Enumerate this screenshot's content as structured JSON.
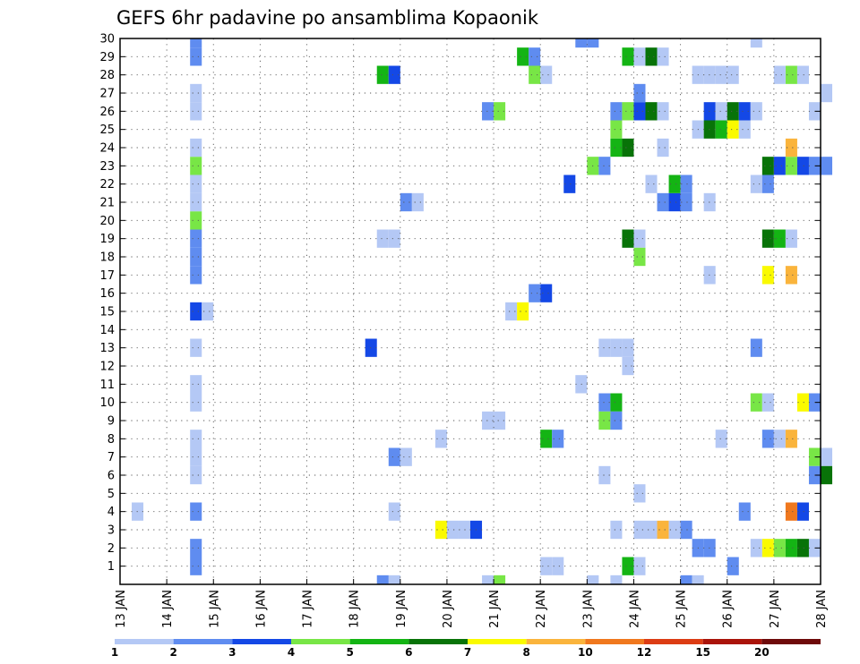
{
  "chart_data": {
    "type": "heatmap",
    "title": "GEFS 6hr padavine po ansamblima Kopaonik",
    "xlabel": "",
    "ylabel": "",
    "x_ticks": [
      "13 JAN",
      "14 JAN",
      "15 JAN",
      "16 JAN",
      "17 JAN",
      "18 JAN",
      "19 JAN",
      "20 JAN",
      "21 JAN",
      "22 JAN",
      "23 JAN",
      "24 JAN",
      "25 JAN",
      "26 JAN",
      "27 JAN",
      "28 JAN"
    ],
    "x_range_days": [
      13,
      28
    ],
    "step_hours": 6,
    "y_ticks": [
      1,
      2,
      3,
      4,
      5,
      6,
      7,
      8,
      9,
      10,
      11,
      12,
      13,
      14,
      15,
      16,
      17,
      18,
      19,
      20,
      21,
      22,
      23,
      24,
      25,
      26,
      27,
      28,
      29,
      30
    ],
    "y_range": [
      0,
      30
    ],
    "grid": true,
    "colorbar": {
      "levels": [
        "1",
        "2",
        "3",
        "4",
        "5",
        "6",
        "7",
        "8",
        "10",
        "12",
        "15",
        "20"
      ],
      "colors": [
        "#b4c8f5",
        "#5f8cf0",
        "#1448e6",
        "#78e646",
        "#14b414",
        "#087308",
        "#fafa00",
        "#fab43c",
        "#f0781e",
        "#dc3c14",
        "#aa140a",
        "#6e0a0a"
      ]
    },
    "cells": [
      [
        14.5,
        1,
        2
      ],
      [
        14.5,
        2,
        2
      ],
      [
        14.5,
        4,
        2
      ],
      [
        14.5,
        6,
        1
      ],
      [
        14.5,
        7,
        1
      ],
      [
        14.5,
        8,
        1
      ],
      [
        14.5,
        10,
        1
      ],
      [
        14.5,
        11,
        1
      ],
      [
        14.5,
        13,
        1
      ],
      [
        14.5,
        15,
        3
      ],
      [
        14.75,
        15,
        1
      ],
      [
        14.5,
        17,
        2
      ],
      [
        14.5,
        18,
        2
      ],
      [
        14.5,
        19,
        2
      ],
      [
        14.5,
        20,
        4
      ],
      [
        14.5,
        21,
        1
      ],
      [
        14.5,
        22,
        1
      ],
      [
        14.5,
        23,
        4
      ],
      [
        14.5,
        24,
        1
      ],
      [
        14.5,
        26,
        1
      ],
      [
        14.5,
        27,
        1
      ],
      [
        14.5,
        29,
        2
      ],
      [
        14.5,
        30,
        2
      ],
      [
        13.25,
        4,
        1
      ],
      [
        18.25,
        13,
        3
      ],
      [
        18.5,
        28,
        5
      ],
      [
        18.75,
        28,
        3
      ],
      [
        18.5,
        19,
        1
      ],
      [
        18.75,
        19,
        1
      ],
      [
        18.75,
        4,
        1
      ],
      [
        18.75,
        7,
        2
      ],
      [
        19,
        7,
        1
      ],
      [
        19,
        21,
        2
      ],
      [
        19.25,
        21,
        1
      ],
      [
        19.75,
        8,
        1
      ],
      [
        19.75,
        3,
        7
      ],
      [
        20,
        3,
        1
      ],
      [
        20.25,
        3,
        1
      ],
      [
        20.5,
        3,
        3
      ],
      [
        20.75,
        9,
        1
      ],
      [
        21,
        9,
        1
      ],
      [
        20.75,
        26,
        2
      ],
      [
        21,
        26,
        4
      ],
      [
        21.25,
        15,
        1
      ],
      [
        21.5,
        15,
        7
      ],
      [
        21.5,
        29,
        5
      ],
      [
        21.75,
        29,
        2
      ],
      [
        21.75,
        28,
        4
      ],
      [
        22,
        28,
        1
      ],
      [
        21.75,
        16,
        2
      ],
      [
        22,
        16,
        3
      ],
      [
        22,
        8,
        5
      ],
      [
        22.25,
        8,
        2
      ],
      [
        22,
        1,
        1
      ],
      [
        22.25,
        1,
        1
      ],
      [
        22.5,
        22,
        3
      ],
      [
        22.75,
        11,
        1
      ],
      [
        23,
        23,
        4
      ],
      [
        23.25,
        23,
        2
      ],
      [
        22.75,
        30,
        2
      ],
      [
        23,
        30,
        2
      ],
      [
        23.25,
        13,
        1
      ],
      [
        23.5,
        13,
        1
      ],
      [
        23.75,
        13,
        1
      ],
      [
        23.75,
        12,
        1
      ],
      [
        23.25,
        10,
        2
      ],
      [
        23.5,
        10,
        5
      ],
      [
        23.25,
        9,
        4
      ],
      [
        23.5,
        9,
        2
      ],
      [
        23.25,
        6,
        1
      ],
      [
        23.5,
        3,
        1
      ],
      [
        23.5,
        26,
        2
      ],
      [
        23.75,
        26,
        4
      ],
      [
        24,
        26,
        3
      ],
      [
        24.25,
        26,
        6
      ],
      [
        24.5,
        26,
        1
      ],
      [
        23.5,
        25,
        4
      ],
      [
        23.5,
        24,
        5
      ],
      [
        23.75,
        24,
        6
      ],
      [
        23.75,
        29,
        5
      ],
      [
        24,
        29,
        1
      ],
      [
        24.25,
        29,
        6
      ],
      [
        24.5,
        29,
        1
      ],
      [
        23.75,
        1,
        5
      ],
      [
        24,
        1,
        1
      ],
      [
        23.75,
        19,
        6
      ],
      [
        24,
        19,
        1
      ],
      [
        24,
        18,
        4
      ],
      [
        24,
        27,
        2
      ],
      [
        24,
        5,
        1
      ],
      [
        24,
        3,
        1
      ],
      [
        24.25,
        3,
        1
      ],
      [
        24.5,
        3,
        8
      ],
      [
        24.75,
        3,
        1
      ],
      [
        25,
        3,
        2
      ],
      [
        24.25,
        22,
        1
      ],
      [
        24.5,
        24,
        1
      ],
      [
        24.5,
        21,
        2
      ],
      [
        24.75,
        21,
        3
      ],
      [
        25,
        21,
        2
      ],
      [
        24.75,
        22,
        5
      ],
      [
        25,
        22,
        2
      ],
      [
        25.25,
        28,
        1
      ],
      [
        25.5,
        28,
        1
      ],
      [
        25.75,
        28,
        1
      ],
      [
        26,
        28,
        1
      ],
      [
        25.5,
        21,
        1
      ],
      [
        25.5,
        17,
        1
      ],
      [
        25.25,
        25,
        1
      ],
      [
        25.5,
        25,
        6
      ],
      [
        25.75,
        25,
        5
      ],
      [
        26,
        25,
        7
      ],
      [
        26.25,
        25,
        1
      ],
      [
        25.5,
        26,
        3
      ],
      [
        25.75,
        26,
        1
      ],
      [
        26,
        26,
        6
      ],
      [
        26.25,
        26,
        3
      ],
      [
        26.5,
        26,
        1
      ],
      [
        25.25,
        2,
        2
      ],
      [
        25.5,
        2,
        2
      ],
      [
        25.75,
        8,
        1
      ],
      [
        26,
        1,
        2
      ],
      [
        26.25,
        4,
        2
      ],
      [
        26.5,
        13,
        2
      ],
      [
        26.5,
        10,
        4
      ],
      [
        26.75,
        10,
        1
      ],
      [
        26.5,
        22,
        1
      ],
      [
        26.75,
        22,
        2
      ],
      [
        26.5,
        2,
        1
      ],
      [
        26.75,
        2,
        7
      ],
      [
        27,
        2,
        4
      ],
      [
        27.25,
        2,
        5
      ],
      [
        27.5,
        2,
        6
      ],
      [
        27.75,
        2,
        1
      ],
      [
        26.75,
        8,
        2
      ],
      [
        27,
        8,
        1
      ],
      [
        27.25,
        8,
        8
      ],
      [
        26.75,
        17,
        7
      ],
      [
        27.25,
        17,
        8
      ],
      [
        26.75,
        19,
        6
      ],
      [
        27,
        19,
        5
      ],
      [
        27.25,
        19,
        1
      ],
      [
        26.75,
        23,
        6
      ],
      [
        27,
        23,
        3
      ],
      [
        27.25,
        23,
        4
      ],
      [
        27.5,
        23,
        3
      ],
      [
        27.75,
        23,
        2
      ],
      [
        28,
        23,
        2
      ],
      [
        27.25,
        24,
        8
      ],
      [
        27.25,
        28,
        4
      ],
      [
        27.5,
        28,
        1
      ],
      [
        27,
        28,
        1
      ],
      [
        27.25,
        4,
        9
      ],
      [
        27.5,
        4,
        3
      ],
      [
        27.5,
        10,
        7
      ],
      [
        27.75,
        10,
        2
      ],
      [
        27.75,
        7,
        4
      ],
      [
        28,
        7,
        1
      ],
      [
        27.75,
        6,
        2
      ],
      [
        28,
        6,
        6
      ],
      [
        27.75,
        26,
        1
      ],
      [
        28,
        27,
        1
      ],
      [
        26.5,
        30,
        1
      ],
      [
        25,
        0,
        2
      ],
      [
        25.25,
        0,
        1
      ],
      [
        21,
        0,
        4
      ],
      [
        20.75,
        0,
        1
      ],
      [
        23,
        0,
        1
      ],
      [
        23.5,
        0,
        1
      ],
      [
        18.75,
        0,
        1
      ],
      [
        18.5,
        0,
        2
      ]
    ]
  }
}
